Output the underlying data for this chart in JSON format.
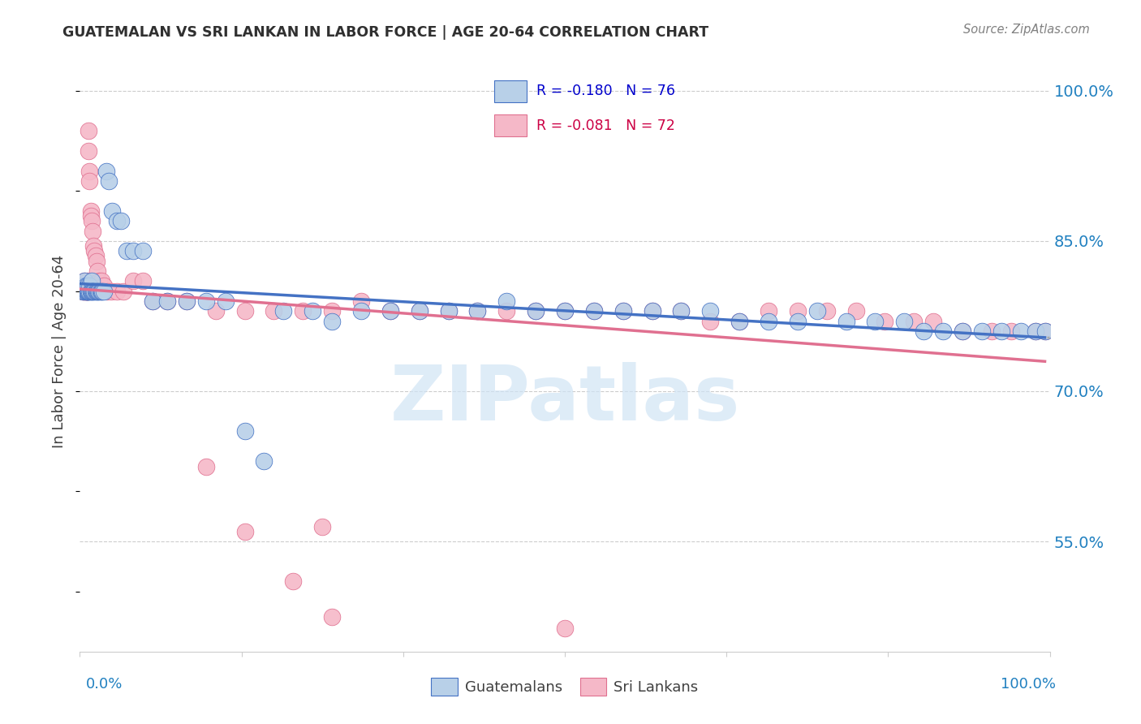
{
  "title": "GUATEMALAN VS SRI LANKAN IN LABOR FORCE | AGE 20-64 CORRELATION CHART",
  "source": "Source: ZipAtlas.com",
  "ylabel": "In Labor Force | Age 20-64",
  "ytick_values": [
    1.0,
    0.85,
    0.7,
    0.55
  ],
  "xmin": 0.0,
  "xmax": 1.0,
  "ymin": 0.44,
  "ymax": 1.04,
  "blue_fill": "#b8d0e8",
  "pink_fill": "#f5b8c8",
  "blue_edge": "#4472c4",
  "pink_edge": "#e07090",
  "blue_line": "#4472c4",
  "pink_line": "#e07090",
  "dash_color": "#aaaaaa",
  "grid_color": "#cccccc",
  "bg_color": "#ffffff",
  "title_color": "#303030",
  "source_color": "#808080",
  "axis_tick_color": "#2080c0",
  "ylabel_color": "#404040",
  "watermark": "ZIPatlas",
  "watermark_color": "#d0e4f5",
  "legend_r_blue": "R = -0.180",
  "legend_n_blue": "N = 76",
  "legend_r_pink": "R = -0.081",
  "legend_n_pink": "N = 72",
  "legend_blue_color": "#0000cc",
  "legend_pink_color": "#cc0044",
  "blue_x": [
    0.003,
    0.004,
    0.005,
    0.005,
    0.006,
    0.006,
    0.007,
    0.007,
    0.008,
    0.008,
    0.009,
    0.009,
    0.01,
    0.01,
    0.011,
    0.011,
    0.012,
    0.012,
    0.013,
    0.014,
    0.015,
    0.016,
    0.017,
    0.018,
    0.019,
    0.02,
    0.021,
    0.022,
    0.023,
    0.025,
    0.027,
    0.03,
    0.033,
    0.038,
    0.042,
    0.048,
    0.055,
    0.065,
    0.075,
    0.09,
    0.11,
    0.13,
    0.15,
    0.17,
    0.19,
    0.21,
    0.24,
    0.26,
    0.29,
    0.32,
    0.35,
    0.38,
    0.41,
    0.44,
    0.47,
    0.5,
    0.53,
    0.56,
    0.59,
    0.62,
    0.65,
    0.68,
    0.71,
    0.74,
    0.76,
    0.79,
    0.82,
    0.85,
    0.87,
    0.89,
    0.91,
    0.93,
    0.95,
    0.97,
    0.985,
    0.995
  ],
  "blue_y": [
    0.8,
    0.805,
    0.81,
    0.8,
    0.8,
    0.805,
    0.8,
    0.8,
    0.8,
    0.805,
    0.8,
    0.8,
    0.8,
    0.805,
    0.8,
    0.8,
    0.81,
    0.8,
    0.8,
    0.8,
    0.8,
    0.8,
    0.8,
    0.8,
    0.8,
    0.8,
    0.8,
    0.8,
    0.8,
    0.8,
    0.92,
    0.91,
    0.88,
    0.87,
    0.87,
    0.84,
    0.84,
    0.84,
    0.79,
    0.79,
    0.79,
    0.79,
    0.79,
    0.66,
    0.63,
    0.78,
    0.78,
    0.77,
    0.78,
    0.78,
    0.78,
    0.78,
    0.78,
    0.79,
    0.78,
    0.78,
    0.78,
    0.78,
    0.78,
    0.78,
    0.78,
    0.77,
    0.77,
    0.77,
    0.78,
    0.77,
    0.77,
    0.77,
    0.76,
    0.76,
    0.76,
    0.76,
    0.76,
    0.76,
    0.76,
    0.76
  ],
  "pink_x": [
    0.003,
    0.004,
    0.005,
    0.005,
    0.006,
    0.006,
    0.007,
    0.007,
    0.008,
    0.008,
    0.009,
    0.009,
    0.01,
    0.01,
    0.011,
    0.011,
    0.012,
    0.013,
    0.014,
    0.015,
    0.016,
    0.017,
    0.018,
    0.02,
    0.022,
    0.025,
    0.028,
    0.032,
    0.038,
    0.045,
    0.055,
    0.065,
    0.075,
    0.09,
    0.11,
    0.14,
    0.17,
    0.2,
    0.23,
    0.26,
    0.29,
    0.32,
    0.35,
    0.38,
    0.41,
    0.44,
    0.47,
    0.5,
    0.53,
    0.56,
    0.59,
    0.62,
    0.65,
    0.68,
    0.71,
    0.74,
    0.77,
    0.8,
    0.83,
    0.86,
    0.88,
    0.91,
    0.94,
    0.96,
    0.985,
    0.995,
    0.25,
    0.17,
    0.22,
    0.26,
    0.5,
    0.13
  ],
  "pink_y": [
    0.8,
    0.8,
    0.81,
    0.8,
    0.8,
    0.8,
    0.8,
    0.8,
    0.81,
    0.8,
    0.96,
    0.94,
    0.92,
    0.91,
    0.88,
    0.875,
    0.87,
    0.86,
    0.845,
    0.84,
    0.835,
    0.83,
    0.82,
    0.81,
    0.81,
    0.805,
    0.8,
    0.8,
    0.8,
    0.8,
    0.81,
    0.81,
    0.79,
    0.79,
    0.79,
    0.78,
    0.78,
    0.78,
    0.78,
    0.78,
    0.79,
    0.78,
    0.78,
    0.78,
    0.78,
    0.78,
    0.78,
    0.78,
    0.78,
    0.78,
    0.78,
    0.78,
    0.77,
    0.77,
    0.78,
    0.78,
    0.78,
    0.78,
    0.77,
    0.77,
    0.77,
    0.76,
    0.76,
    0.76,
    0.76,
    0.76,
    0.565,
    0.56,
    0.51,
    0.475,
    0.463,
    0.625
  ]
}
